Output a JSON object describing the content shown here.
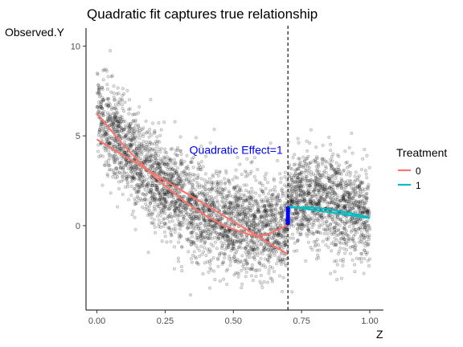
{
  "chart_data": {
    "type": "scatter",
    "title": "Quadratic fit captures true relationship",
    "xlabel": "Z",
    "ylabel": "Observed.Y",
    "xlim": [
      -0.04,
      1.05
    ],
    "ylim": [
      -4.7,
      11.0
    ],
    "x_ticks": [
      0,
      0.25,
      0.5,
      0.75,
      1
    ],
    "x_tick_labels": [
      "0.00",
      "0.25",
      "0.50",
      "0.75",
      "1.00"
    ],
    "y_ticks": [
      0,
      5,
      10
    ],
    "y_tick_labels": [
      "0",
      "5",
      "10"
    ],
    "grid": false,
    "cutoff": 0.7,
    "annotation": {
      "text": "Quadratic Effect=1",
      "x": 0.51,
      "y": 4.0,
      "color": "#0000ff"
    },
    "effect_bar": {
      "x": 0.7,
      "y_from": 0.05,
      "y_to": 1.05,
      "color": "#0000ff"
    },
    "legend": {
      "title": "Treatment",
      "position": "right",
      "entries": [
        "0",
        "1"
      ]
    },
    "series": [
      {
        "name": "0",
        "color": "#f8766d",
        "fits": [
          {
            "kind": "linear",
            "x": [
              0.0,
              0.7
            ],
            "y": [
              4.8,
              -1.6
            ]
          },
          {
            "kind": "quadratic",
            "x": [
              0.0,
              0.1,
              0.2,
              0.3,
              0.4,
              0.5,
              0.6,
              0.7
            ],
            "y": [
              6.25,
              4.45,
              2.9,
              1.6,
              0.55,
              -0.2,
              -0.55,
              0.05
            ]
          }
        ]
      },
      {
        "name": "1",
        "color": "#00bfc4",
        "fits": [
          {
            "kind": "linear",
            "x": [
              0.7,
              1.0
            ],
            "y": [
              1.08,
              0.42
            ]
          },
          {
            "kind": "quadratic",
            "x": [
              0.7,
              0.8,
              0.9,
              1.0
            ],
            "y": [
              1.0,
              1.0,
              0.78,
              0.45
            ]
          }
        ]
      }
    ],
    "scatter": {
      "color": "#000000",
      "count": 4200,
      "x_range": [
        0,
        1
      ],
      "mean_below_cutoff": {
        "a": 6.25,
        "b": -20.5,
        "c": 16.5
      },
      "mean_above_cutoff": {
        "a": -4.0,
        "b": 16.0,
        "c": -11.5
      },
      "noise_sd": 1.3
    }
  }
}
